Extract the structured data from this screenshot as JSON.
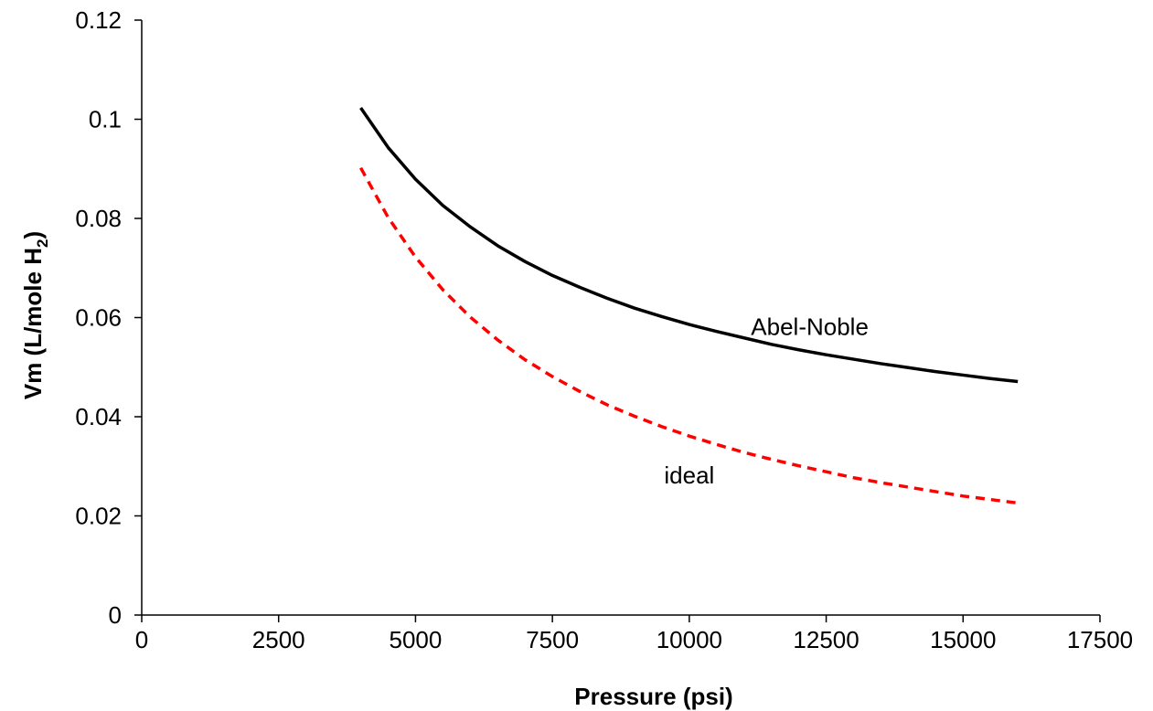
{
  "chart_data": {
    "type": "line",
    "xlabel": "Pressure (psi)",
    "ylabel": {
      "main": "Vm (L/mole H",
      "subscript": "2",
      "suffix": ")"
    },
    "xlim": [
      0,
      17500
    ],
    "ylim": [
      0,
      0.12
    ],
    "x_ticks": [
      "0",
      "2500",
      "5000",
      "7500",
      "10000",
      "12500",
      "15000",
      "17500"
    ],
    "y_ticks": [
      "0",
      "0.02",
      "0.04",
      "0.06",
      "0.08",
      "0.1",
      "0.12"
    ],
    "grid": false,
    "series": [
      {
        "name": "Abel-Noble",
        "color": "#000000",
        "style": "solid",
        "x": [
          4000,
          4500,
          5000,
          5500,
          6000,
          6500,
          7000,
          7500,
          8000,
          8500,
          9000,
          9500,
          10000,
          10500,
          11000,
          11500,
          12000,
          12500,
          13000,
          13500,
          14000,
          14500,
          15000,
          15500,
          16000
        ],
        "y": [
          0.1023,
          0.0943,
          0.0879,
          0.0826,
          0.0783,
          0.0745,
          0.0713,
          0.0685,
          0.0661,
          0.0639,
          0.0619,
          0.0602,
          0.0586,
          0.0572,
          0.0559,
          0.0546,
          0.0535,
          0.0525,
          0.0516,
          0.0507,
          0.0499,
          0.0491,
          0.0484,
          0.0477,
          0.0471
        ]
      },
      {
        "name": "ideal",
        "color": "#ff0000",
        "style": "dashed",
        "x": [
          4000,
          4500,
          5000,
          5500,
          6000,
          6500,
          7000,
          7500,
          8000,
          8500,
          9000,
          9500,
          10000,
          10500,
          11000,
          11500,
          12000,
          12500,
          13000,
          13500,
          14000,
          14500,
          15000,
          15500,
          16000
        ],
        "y": [
          0.0902,
          0.0802,
          0.0722,
          0.0656,
          0.0601,
          0.0555,
          0.0515,
          0.0481,
          0.0451,
          0.0424,
          0.0401,
          0.038,
          0.0361,
          0.0344,
          0.0328,
          0.0314,
          0.0301,
          0.0289,
          0.0277,
          0.0267,
          0.0258,
          0.0249,
          0.024,
          0.0233,
          0.0226
        ]
      }
    ],
    "annotations": [
      {
        "text": "Abel-Noble",
        "x": 12200,
        "y": 0.0565
      },
      {
        "text": "ideal",
        "x": 10000,
        "y": 0.0265
      }
    ]
  }
}
